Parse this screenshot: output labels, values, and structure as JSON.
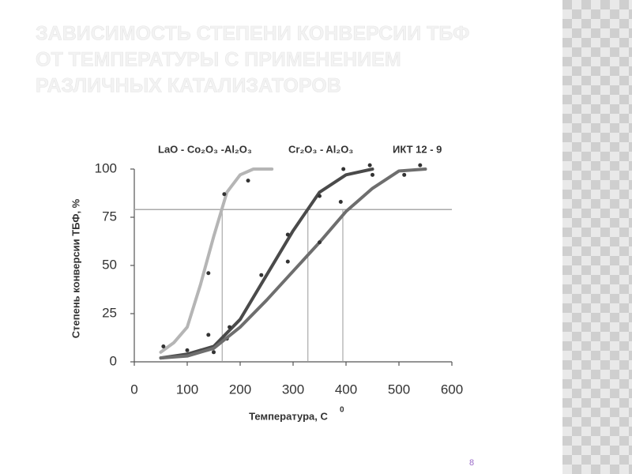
{
  "title_lines": [
    "ЗАВИСИМОСТЬ СТЕПЕНИ КОНВЕРСИИ ТБФ",
    "ОТ ТЕМПЕРАТУРЫ С ПРИМЕНЕНИЕМ",
    "РАЗЛИЧНЫХ КАТАЛИЗАТОРОВ"
  ],
  "page_number": "8",
  "chart_data": {
    "type": "line",
    "ylabel": "Степень конверсии ТБФ, %",
    "xlabel": "Температура, С",
    "xlabel_sup": "0",
    "xlim": [
      0,
      600
    ],
    "xticks": [
      0,
      100,
      200,
      300,
      400,
      500,
      600
    ],
    "ylim": [
      0,
      100
    ],
    "yticks": [
      0,
      25,
      50,
      75,
      100
    ],
    "grid": false,
    "reference_y": 79,
    "reference_x": [
      166,
      328,
      394
    ],
    "series": [
      {
        "name": "LaO - Co₂O₃ -Al₂O₃",
        "color": "#b5b5b5",
        "x": [
          50,
          75,
          100,
          125,
          150,
          175,
          200,
          225,
          260
        ],
        "values": [
          5,
          10,
          18,
          40,
          65,
          88,
          97,
          100,
          100
        ],
        "points_x": [
          55,
          100,
          140,
          140,
          170,
          215
        ],
        "points_y": [
          8,
          6,
          46,
          14,
          87,
          94
        ]
      },
      {
        "name": "Cr₂O₃ - Al₂O₃",
        "color": "#4a4a4a",
        "x": [
          50,
          100,
          150,
          200,
          250,
          300,
          350,
          400,
          450
        ],
        "values": [
          2,
          4,
          8,
          22,
          45,
          68,
          88,
          97,
          100
        ],
        "points_x": [
          150,
          175,
          240,
          290,
          290,
          350,
          395,
          445
        ],
        "points_y": [
          5,
          12,
          45,
          66,
          52,
          86,
          100,
          102
        ]
      },
      {
        "name": "ИКТ 12 - 9",
        "color": "#6e6e6e",
        "x": [
          50,
          100,
          150,
          200,
          250,
          300,
          350,
          400,
          450,
          500,
          550
        ],
        "values": [
          2,
          3,
          7,
          18,
          32,
          47,
          62,
          78,
          90,
          99,
          100
        ],
        "points_x": [
          180,
          350,
          390,
          450,
          510,
          540
        ],
        "points_y": [
          18,
          62,
          83,
          97,
          97,
          102
        ]
      }
    ]
  }
}
